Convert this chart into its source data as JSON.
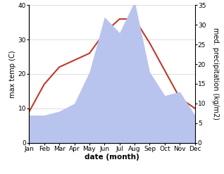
{
  "months": [
    "Jan",
    "Feb",
    "Mar",
    "Apr",
    "May",
    "Jun",
    "Jul",
    "Aug",
    "Sep",
    "Oct",
    "Nov",
    "Dec"
  ],
  "temperature": [
    9,
    17,
    22,
    24,
    26,
    32,
    36,
    36,
    29,
    21,
    13,
    10
  ],
  "precipitation": [
    7,
    7,
    8,
    10,
    18,
    32,
    28,
    36,
    18,
    12,
    13,
    7
  ],
  "temp_color": "#c0392b",
  "precip_color": "#b8c4ee",
  "temp_ylim": [
    0,
    40
  ],
  "precip_ylim": [
    0,
    35
  ],
  "temp_yticks": [
    0,
    10,
    20,
    30,
    40
  ],
  "precip_yticks": [
    0,
    5,
    10,
    15,
    20,
    25,
    30,
    35
  ],
  "xlabel": "date (month)",
  "ylabel_left": "max temp (C)",
  "ylabel_right": "med. precipitation (kg/m2)",
  "bg_color": "#ffffff",
  "label_fontsize": 7,
  "tick_fontsize": 6.5,
  "linewidth": 1.5
}
